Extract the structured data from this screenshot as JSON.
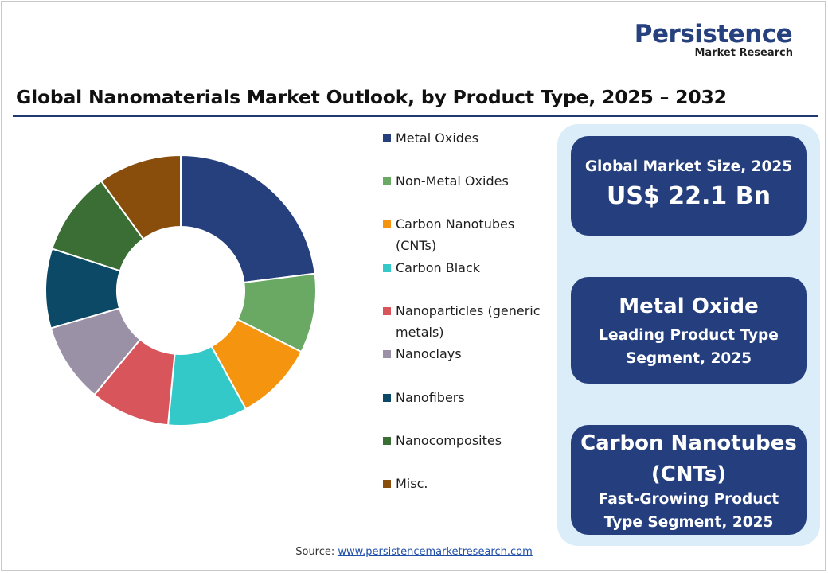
{
  "brand": {
    "name": "Persistence",
    "tagline": "Market Research"
  },
  "chart_data": {
    "type": "pie",
    "style": "donut",
    "title": "Global Nanomaterials Market Outlook, by Product Type, 2025 – 2032",
    "legend_placement": "right",
    "categories": [
      "Metal Oxides",
      "Non-Metal Oxides",
      "Carbon Nanotubes (CNTs)",
      "Carbon Black",
      "Nanoparticles (generic metals)",
      "Nanoclays",
      "Nanofibers",
      "Nanocomposites",
      "Misc."
    ],
    "values": [
      23,
      9.5,
      9.5,
      9.5,
      9.5,
      9.5,
      9.5,
      10,
      10
    ],
    "colors": [
      "#26407e",
      "#6aa964",
      "#f5940f",
      "#33c9c9",
      "#d8565b",
      "#9b91a6",
      "#0b4966",
      "#3b6e35",
      "#8a4e0c"
    ]
  },
  "cards": {
    "market_size": {
      "label": "Global Market Size, 2025",
      "value": "US$ 22.1 Bn"
    },
    "leading": {
      "main": "Metal Oxide",
      "sub": "Leading Product Type Segment, 2025"
    },
    "growing": {
      "main": "Carbon Nanotubes (CNTs)",
      "sub": "Fast-Growing Product Type Segment, 2025"
    }
  },
  "source": {
    "label": "Source:",
    "link": "www.persistencemarketresearch.com"
  }
}
